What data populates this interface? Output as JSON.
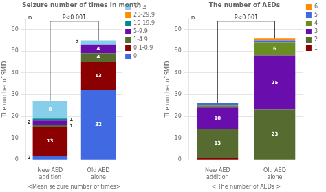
{
  "chart_data": [
    {
      "type": "bar",
      "stacked": true,
      "title": "Seizure number of times in month",
      "xlabel": "<Mean seizure number of times>",
      "ylabel": "The number of SMID",
      "categories": [
        "New AED\naddition",
        "Old AED\nalone"
      ],
      "series": [
        {
          "name": "0",
          "color": "#4169E1",
          "values": [
            2,
            32
          ]
        },
        {
          "name": "0.1-0.9",
          "color": "#8B0000",
          "values": [
            13,
            13
          ]
        },
        {
          "name": "1-4.9",
          "color": "#556B2F",
          "values": [
            1,
            4
          ]
        },
        {
          "name": "5-9.9",
          "color": "#6A0DAD",
          "values": [
            2,
            4
          ]
        },
        {
          "name": "10-19.9",
          "color": "#008B8B",
          "values": [
            1,
            0
          ]
        },
        {
          "name": "20-29.9",
          "color": "#FF8C00",
          "values": [
            0,
            0
          ]
        },
        {
          "name": "30 ≦",
          "color": "#87CEEB",
          "values": [
            8,
            2
          ]
        }
      ],
      "data_labels": true,
      "ylim": [
        0,
        65
      ],
      "yticks": [
        0,
        10,
        20,
        30,
        40,
        50,
        60
      ],
      "grid": true,
      "legend": "right",
      "annotations": [
        "P<0.001",
        "n"
      ]
    },
    {
      "type": "bar",
      "stacked": true,
      "title": "The number of AEDs",
      "xlabel": "< The number of AEDs >",
      "ylabel": "The number of SMID",
      "categories": [
        "New AED\naddition",
        "Old AED\nalone"
      ],
      "series": [
        {
          "name": "1",
          "color": "#8B0000",
          "values": [
            1,
            0
          ]
        },
        {
          "name": "2",
          "color": "#556B2F",
          "values": [
            13,
            23
          ],
          "data_labels": true
        },
        {
          "name": "3",
          "color": "#6A0DAD",
          "values": [
            10,
            25
          ],
          "data_labels": true
        },
        {
          "name": "4",
          "color": "#6B8E23",
          "values": [
            1,
            6
          ],
          "data_labels": true,
          "value_labels": [
            null,
            "6"
          ]
        },
        {
          "name": "5",
          "color": "#4169E1",
          "values": [
            1,
            1
          ]
        },
        {
          "name": "6",
          "color": "#FF8C00",
          "values": [
            0,
            1
          ]
        }
      ],
      "ylim": [
        0,
        65
      ],
      "yticks": [
        0,
        10,
        20,
        30,
        40,
        50,
        60
      ],
      "grid": true,
      "legend": "right",
      "annotations": [
        "P<0.001",
        "n"
      ]
    }
  ]
}
